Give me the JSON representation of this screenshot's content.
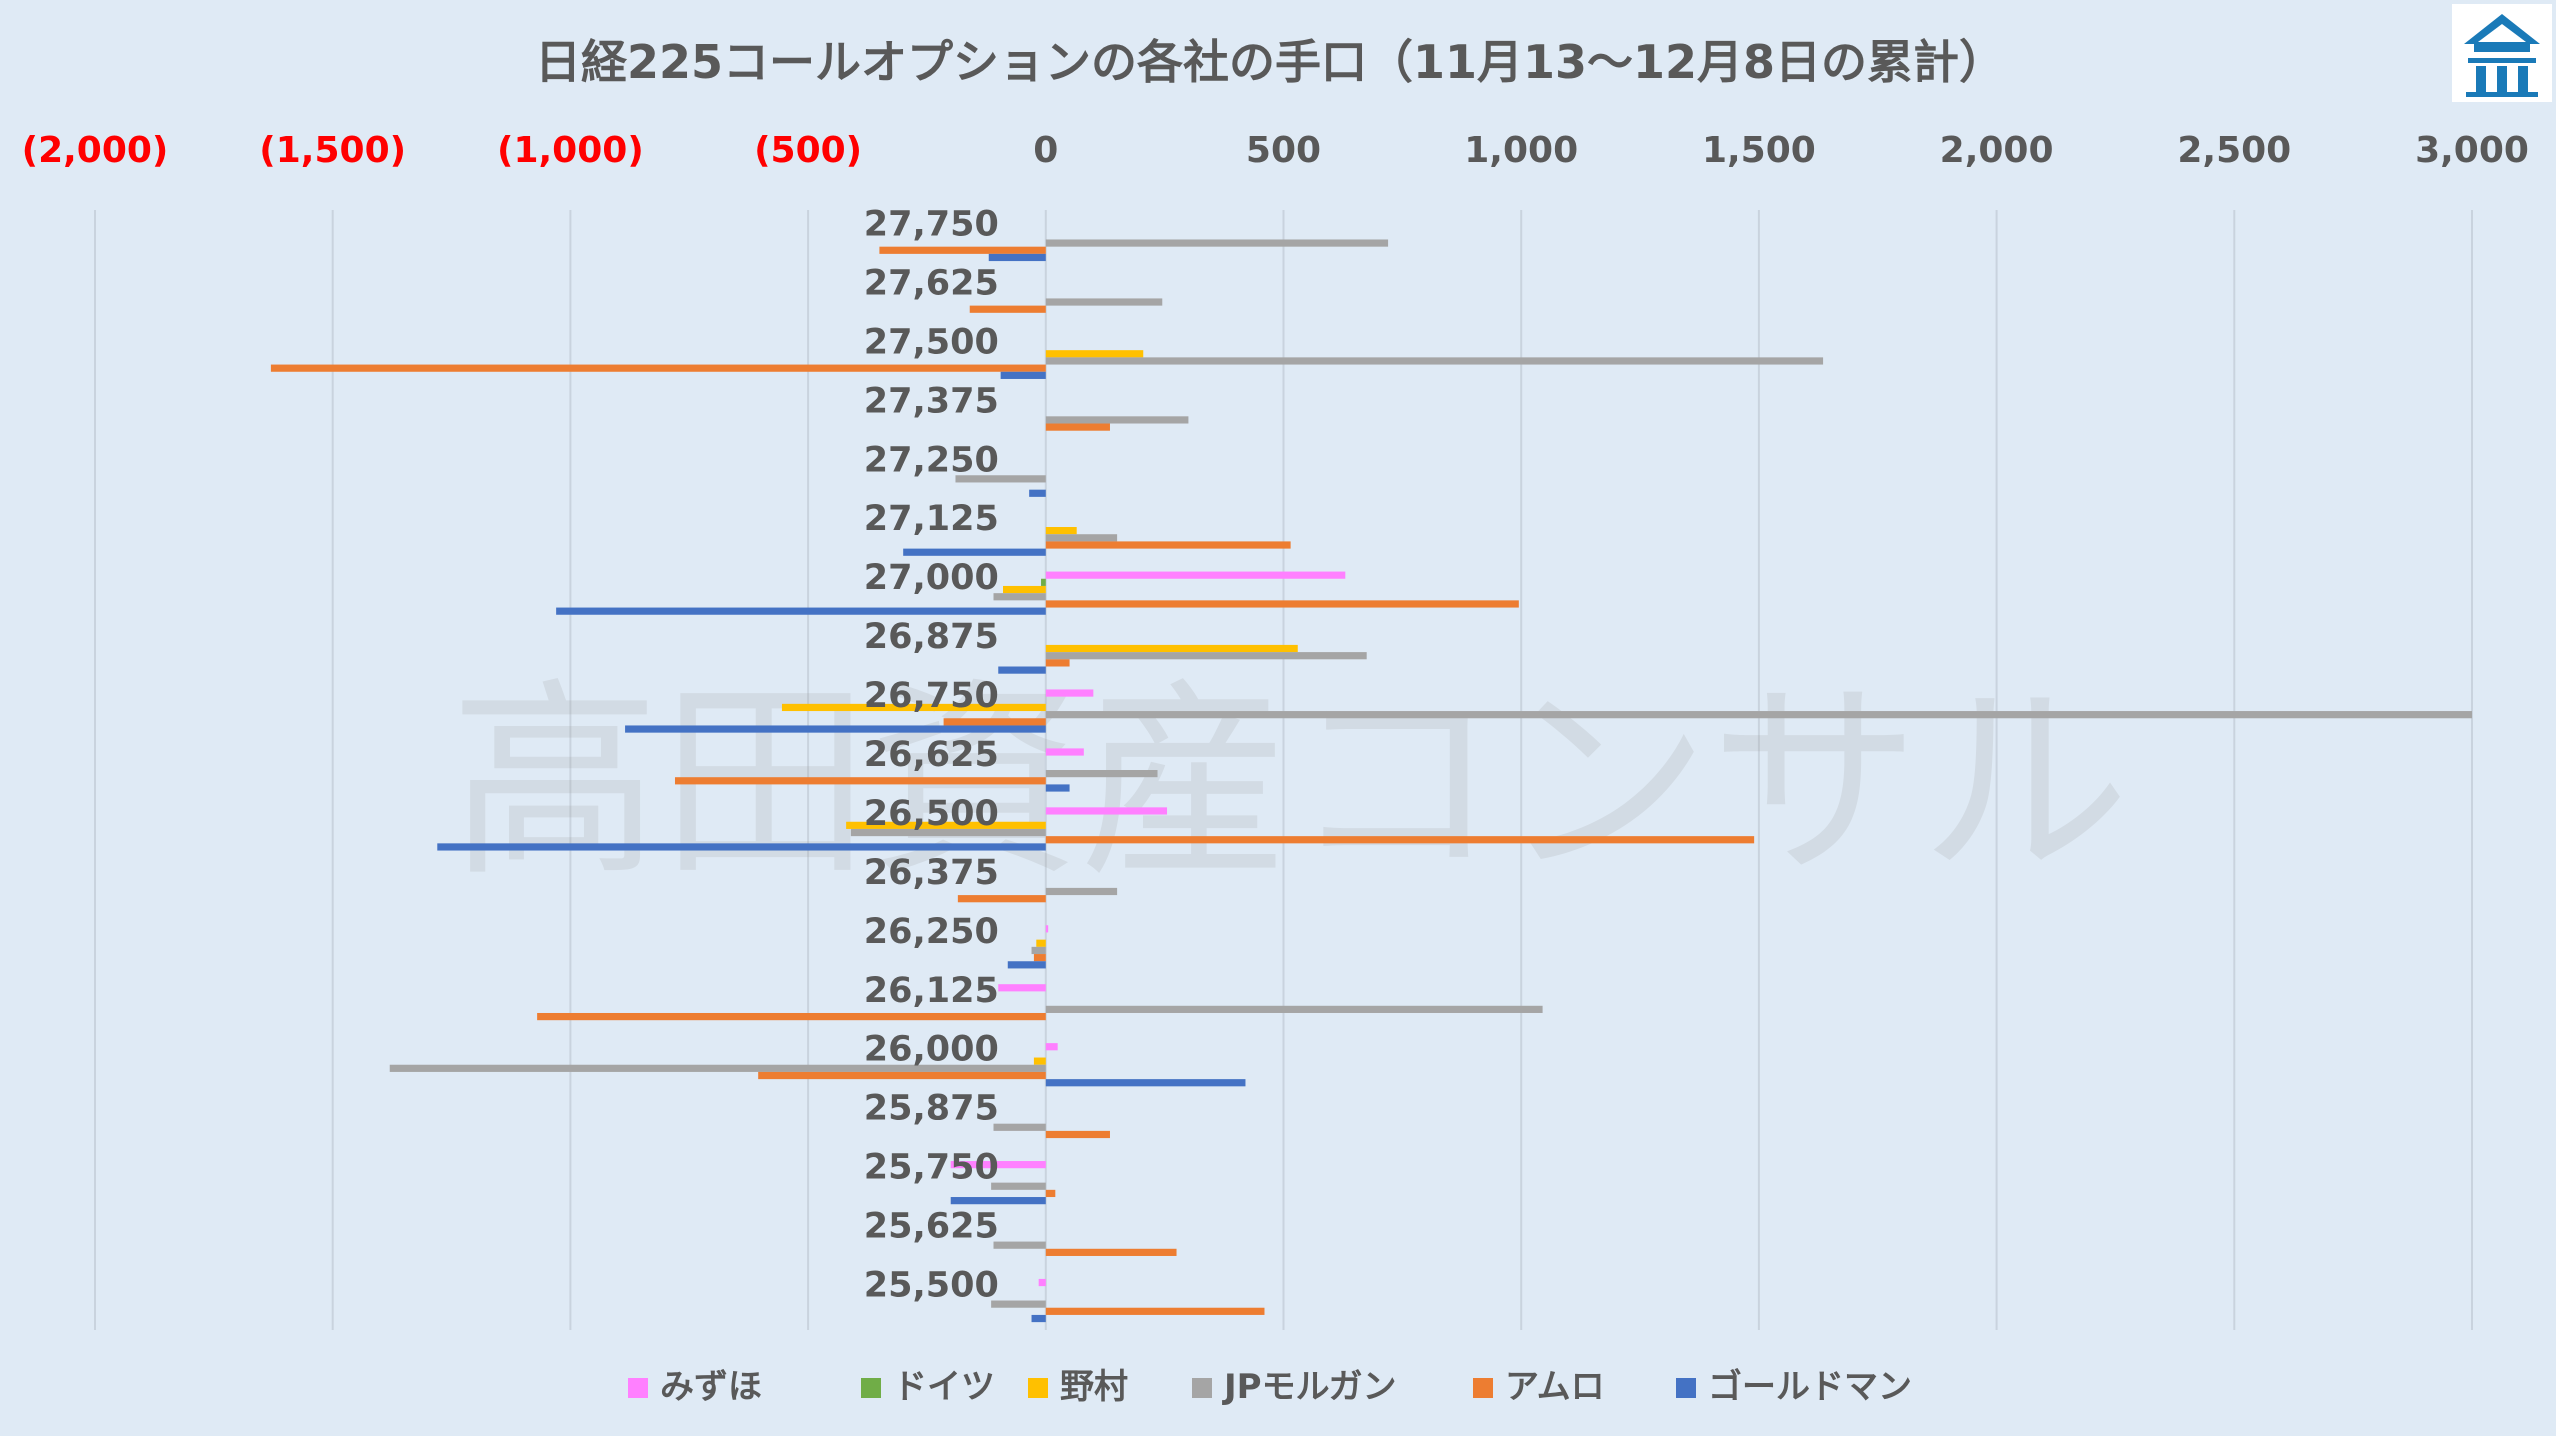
{
  "chart_data": {
    "type": "bar",
    "orientation": "horizontal",
    "title": "日経225コールオプションの各社の手口（11月13～12月8日の累計）",
    "xlim": [
      -2000,
      3000
    ],
    "xticks": [
      -2000,
      -1500,
      -1000,
      -500,
      0,
      500,
      1000,
      1500,
      2000,
      2500,
      3000
    ],
    "xtick_labels": [
      "(2,000)",
      "(1,500)",
      "(1,000)",
      "(500)",
      "0",
      "500",
      "1,000",
      "1,500",
      "2,000",
      "2,500",
      "3,000"
    ],
    "negative_tick_color": "#ff0000",
    "positive_tick_color": "#595959",
    "grid": "vertical",
    "legend_position": "bottom",
    "categories": [
      "27,750",
      "27,625",
      "27,500",
      "27,375",
      "27,250",
      "27,125",
      "27,000",
      "26,875",
      "26,750",
      "26,625",
      "26,500",
      "26,375",
      "26,250",
      "26,125",
      "26,000",
      "25,875",
      "25,750",
      "25,625",
      "25,500"
    ],
    "series": [
      {
        "name": "みずほ",
        "color": "#ff80ff",
        "values": [
          0,
          0,
          0,
          0,
          0,
          0,
          630,
          0,
          100,
          80,
          255,
          0,
          5,
          -100,
          25,
          0,
          -200,
          0,
          -15
        ]
      },
      {
        "name": "ドイツ",
        "color": "#70ad47",
        "values": [
          0,
          0,
          0,
          0,
          0,
          0,
          -10,
          0,
          0,
          0,
          0,
          0,
          0,
          0,
          0,
          0,
          0,
          0,
          0
        ]
      },
      {
        "name": "野村",
        "color": "#ffc000",
        "values": [
          0,
          0,
          205,
          0,
          0,
          65,
          -90,
          530,
          -555,
          0,
          -420,
          0,
          -20,
          0,
          -25,
          0,
          0,
          0,
          0
        ]
      },
      {
        "name": "JPモルガン",
        "color": "#a5a5a5",
        "values": [
          720,
          245,
          1635,
          300,
          -190,
          150,
          -110,
          675,
          3000,
          235,
          -410,
          150,
          -30,
          1045,
          -1380,
          -110,
          -115,
          -110,
          -115
        ]
      },
      {
        "name": "アムロ",
        "color": "#ed7d31",
        "values": [
          -350,
          -160,
          -1630,
          135,
          0,
          515,
          995,
          50,
          -215,
          -780,
          1490,
          -185,
          -25,
          -1070,
          -605,
          135,
          20,
          275,
          460
        ]
      },
      {
        "name": "ゴールドマン",
        "color": "#4472c4",
        "values": [
          -120,
          0,
          -95,
          0,
          -35,
          -300,
          -1030,
          -100,
          -885,
          50,
          -1280,
          0,
          -80,
          0,
          420,
          0,
          -200,
          0,
          -30
        ]
      }
    ]
  },
  "watermark": "高田資産コンサル",
  "logo": {
    "name": "emblem-icon",
    "color": "#1a7ab8"
  }
}
